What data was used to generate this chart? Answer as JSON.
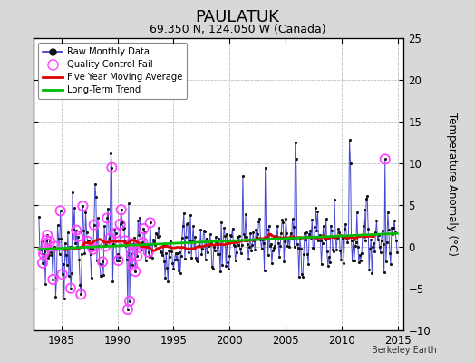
{
  "title": "PAULATUK",
  "subtitle": "69.350 N, 124.050 W (Canada)",
  "ylabel": "Temperature Anomaly (°C)",
  "credit": "Berkeley Earth",
  "xlim": [
    1982.5,
    2015.5
  ],
  "ylim": [
    -10,
    25
  ],
  "yticks": [
    -10,
    -5,
    0,
    5,
    10,
    15,
    20,
    25
  ],
  "xticks": [
    1985,
    1990,
    1995,
    2000,
    2005,
    2010,
    2015
  ],
  "background_color": "#d8d8d8",
  "plot_background": "#ffffff",
  "grid_color": "#b0b0b0",
  "raw_line_color": "#3333cc",
  "raw_dot_color": "#111111",
  "qc_fail_color": "#ff44ff",
  "moving_avg_color": "#dd0000",
  "trend_color": "#00bb00",
  "title_fontsize": 13,
  "subtitle_fontsize": 9,
  "axis_fontsize": 8.5,
  "n_months": 384,
  "start_year": 1983.0,
  "end_year": 2015.0
}
